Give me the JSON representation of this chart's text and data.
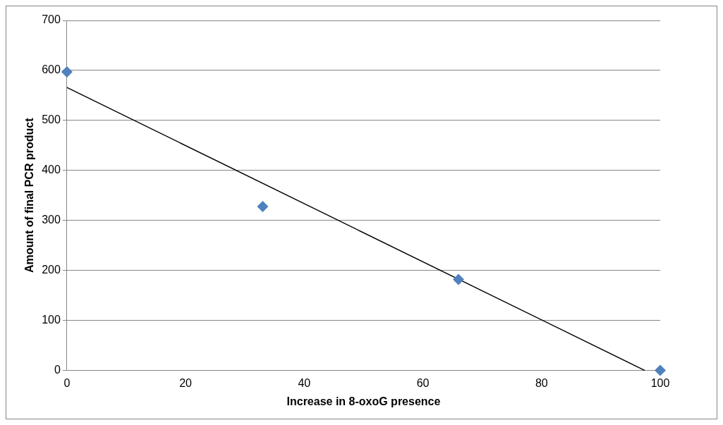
{
  "chart_data": {
    "type": "scatter",
    "xlabel": "Increase in 8-oxoG presence",
    "ylabel": "Amount of final PCR product",
    "x": [
      0,
      33,
      66,
      100
    ],
    "series": [
      {
        "type": "scatter",
        "color": "#4f81bd",
        "marker": "diamond",
        "values": [
          597,
          328,
          182,
          0
        ]
      },
      {
        "type": "line",
        "color": "#000000",
        "marker": "none",
        "x": [
          0,
          97.4
        ],
        "values": [
          566,
          0
        ]
      }
    ],
    "xlim": [
      0,
      100
    ],
    "xticks": [
      0,
      20,
      40,
      60,
      80,
      100
    ],
    "ylim": [
      0,
      700
    ],
    "yticks": [
      0,
      100,
      200,
      300,
      400,
      500,
      600,
      700
    ],
    "grid": "y",
    "legend": false
  }
}
